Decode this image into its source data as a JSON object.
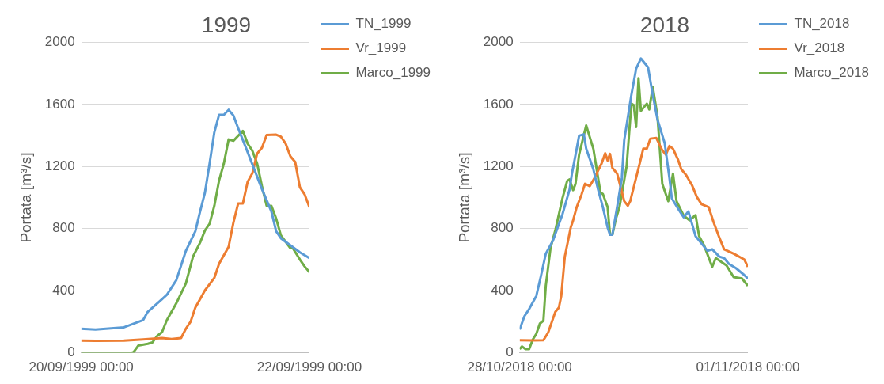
{
  "chart_data": [
    {
      "type": "line",
      "title": "1999",
      "ylabel": "Portata [m³/s]",
      "xlim": [
        "1999-09-20T00:00",
        "1999-09-22T00:00"
      ],
      "xticks": [
        {
          "value": "1999-09-20T00:00",
          "label": "20/09/1999 00:00"
        },
        {
          "value": "1999-09-22T00:00",
          "label": "22/09/1999 00:00"
        }
      ],
      "ylim": [
        0,
        2000
      ],
      "yticks": [
        0,
        400,
        800,
        1200,
        1600,
        2000
      ],
      "grid": "y",
      "legend": "top right",
      "marker": "none",
      "line_style": "solid",
      "series": [
        {
          "name": "TN_1999",
          "color": "#5b9bd5",
          "x": [
            "1999-09-20T00:00",
            "1999-09-20T03:00",
            "1999-09-20T09:00",
            "1999-09-20T13:00",
            "1999-09-20T14:00",
            "1999-09-20T17:00",
            "1999-09-20T18:00",
            "1999-09-20T20:00",
            "1999-09-20T22:00",
            "1999-09-21T00:00",
            "1999-09-21T01:00",
            "1999-09-21T02:00",
            "1999-09-21T03:00",
            "1999-09-21T04:00",
            "1999-09-21T05:00",
            "1999-09-21T06:00",
            "1999-09-21T07:00",
            "1999-09-21T08:00",
            "1999-09-21T09:00",
            "1999-09-21T11:00",
            "1999-09-21T14:00",
            "1999-09-21T16:00",
            "1999-09-21T17:00",
            "1999-09-21T18:00",
            "1999-09-21T22:00",
            "1999-09-22T00:00"
          ],
          "values": [
            155,
            150,
            164,
            210,
            264,
            346,
            373,
            468,
            656,
            783,
            911,
            1029,
            1220,
            1421,
            1534,
            1534,
            1566,
            1530,
            1448,
            1293,
            1056,
            911,
            783,
            738,
            647,
            610
          ]
        },
        {
          "name": "Vr_1999",
          "color": "#ed7d31",
          "x": [
            "1999-09-20T00:00",
            "1999-09-20T03:00",
            "1999-09-20T09:00",
            "1999-09-20T13:00",
            "1999-09-20T17:00",
            "1999-09-20T19:00",
            "1999-09-20T21:00",
            "1999-09-20T22:00",
            "1999-09-20T23:00",
            "1999-09-21T00:00",
            "1999-09-21T02:00",
            "1999-09-21T04:00",
            "1999-09-21T05:00",
            "1999-09-21T07:00",
            "1999-09-21T08:00",
            "1999-09-21T09:00",
            "1999-09-21T10:00",
            "1999-09-21T11:00",
            "1999-09-21T12:00",
            "1999-09-21T13:00",
            "1999-09-21T14:00",
            "1999-09-21T15:00",
            "1999-09-21T17:00",
            "1999-09-21T18:00",
            "1999-09-21T19:00",
            "1999-09-21T20:00",
            "1999-09-21T21:00",
            "1999-09-21T22:00",
            "1999-09-21T23:00",
            "1999-09-22T00:00"
          ],
          "values": [
            78,
            77,
            78,
            86,
            95,
            89,
            95,
            155,
            200,
            291,
            401,
            483,
            574,
            683,
            838,
            962,
            962,
            1102,
            1157,
            1284,
            1321,
            1403,
            1406,
            1393,
            1348,
            1266,
            1230,
            1066,
            1020,
            938
          ]
        },
        {
          "name": "Marco_1999",
          "color": "#70ad47",
          "x": [
            "1999-09-20T00:00",
            "1999-09-20T10:30",
            "1999-09-20T11:00",
            "1999-09-20T12:00",
            "1999-09-20T14:00",
            "1999-09-20T15:00",
            "1999-09-20T16:00",
            "1999-09-20T17:00",
            "1999-09-20T18:00",
            "1999-09-20T20:00",
            "1999-09-20T21:00",
            "1999-09-20T22:00",
            "1999-09-20T23:30",
            "1999-09-21T01:00",
            "1999-09-21T02:00",
            "1999-09-21T03:00",
            "1999-09-21T04:00",
            "1999-09-21T05:00",
            "1999-09-21T06:00",
            "1999-09-21T07:00",
            "1999-09-21T08:00",
            "1999-09-21T10:00",
            "1999-09-21T11:00",
            "1999-09-21T12:00",
            "1999-09-21T13:00",
            "1999-09-21T14:00",
            "1999-09-21T15:00",
            "1999-09-21T16:00",
            "1999-09-21T17:00",
            "1999-09-21T18:00",
            "1999-09-21T20:00",
            "1999-09-21T20:30",
            "1999-09-21T22:00",
            "1999-09-21T23:00",
            "1999-09-22T00:00"
          ],
          "values": [
            0,
            0,
            4,
            46,
            58,
            67,
            109,
            133,
            210,
            319,
            383,
            446,
            619,
            710,
            787,
            832,
            947,
            1111,
            1220,
            1375,
            1366,
            1430,
            1348,
            1302,
            1220,
            1075,
            947,
            947,
            865,
            756,
            674,
            674,
            601,
            556,
            519
          ]
        }
      ]
    },
    {
      "type": "line",
      "title": "2018",
      "ylabel": "Portata [m³/s]",
      "xlim": [
        "2018-10-28T00:00",
        "2018-11-01T00:00"
      ],
      "xticks": [
        {
          "value": "2018-10-28T00:00",
          "label": "28/10/2018 00:00"
        },
        {
          "value": "2018-11-01T00:00",
          "label": "01/11/2018 00:00"
        }
      ],
      "ylim": [
        0,
        2000
      ],
      "yticks": [
        0,
        400,
        800,
        1200,
        1600,
        2000
      ],
      "grid": "y",
      "legend": "top right",
      "marker": "none",
      "line_style": "solid",
      "series": [
        {
          "name": "TN_2018",
          "color": "#5b9bd5",
          "x": [
            "2018-10-28T00:00",
            "2018-10-28T02:00",
            "2018-10-28T04:00",
            "2018-10-28T07:00",
            "2018-10-28T09:00",
            "2018-10-28T11:00",
            "2018-10-28T14:00",
            "2018-10-28T16:00",
            "2018-10-28T18:00",
            "2018-10-28T21:00",
            "2018-10-28T22:00",
            "2018-10-29T00:00",
            "2018-10-29T01:00",
            "2018-10-29T03:00",
            "2018-10-29T04:00",
            "2018-10-29T07:00",
            "2018-10-29T09:00",
            "2018-10-29T11:00",
            "2018-10-29T13:00",
            "2018-10-29T14:00",
            "2018-10-29T15:00",
            "2018-10-29T17:00",
            "2018-10-29T19:00",
            "2018-10-29T20:00",
            "2018-10-29T23:00",
            "2018-10-30T01:00",
            "2018-10-30T03:00",
            "2018-10-30T04:00",
            "2018-10-30T06:00",
            "2018-10-30T08:00",
            "2018-10-30T10:00",
            "2018-10-30T13:00",
            "2018-10-30T15:00",
            "2018-10-30T16:00",
            "2018-10-30T19:00",
            "2018-10-30T21:00",
            "2018-10-30T23:00",
            "2018-10-31T02:00",
            "2018-10-31T05:00",
            "2018-10-31T07:00",
            "2018-10-31T09:00",
            "2018-10-31T12:00",
            "2018-10-31T14:00",
            "2018-10-31T16:00",
            "2018-10-31T19:00",
            "2018-10-31T22:00",
            "2018-11-01T00:00"
          ],
          "values": [
            150,
            235,
            282,
            366,
            498,
            638,
            723,
            808,
            892,
            1052,
            1155,
            1315,
            1399,
            1408,
            1315,
            1183,
            1052,
            939,
            808,
            761,
            761,
            939,
            1127,
            1371,
            1662,
            1831,
            1897,
            1878,
            1840,
            1662,
            1502,
            1352,
            1127,
            995,
            920,
            873,
            911,
            751,
            695,
            657,
            667,
            620,
            610,
            573,
            545,
            507,
            479
          ]
        },
        {
          "name": "Vr_2018",
          "color": "#ed7d31",
          "x": [
            "2018-10-28T00:00",
            "2018-10-28T05:30",
            "2018-10-28T10:00",
            "2018-10-28T12:00",
            "2018-10-28T15:00",
            "2018-10-28T16:30",
            "2018-10-28T17:30",
            "2018-10-28T19:00",
            "2018-10-28T21:30",
            "2018-10-28T22:30",
            "2018-10-29T00:00",
            "2018-10-29T02:00",
            "2018-10-29T03:30",
            "2018-10-29T05:30",
            "2018-10-29T07:30",
            "2018-10-29T10:30",
            "2018-10-29T12:00",
            "2018-10-29T13:00",
            "2018-10-29T14:00",
            "2018-10-29T15:00",
            "2018-10-29T17:00",
            "2018-10-29T20:00",
            "2018-10-29T21:30",
            "2018-10-29T22:30",
            "2018-10-30T02:30",
            "2018-10-30T04:00",
            "2018-10-30T05:30",
            "2018-10-30T07:00",
            "2018-10-30T09:30",
            "2018-10-30T12:00",
            "2018-10-30T13:30",
            "2018-10-30T15:00",
            "2018-10-30T16:30",
            "2018-10-30T18:30",
            "2018-10-30T20:00",
            "2018-10-30T22:00",
            "2018-10-31T00:30",
            "2018-10-31T02:30",
            "2018-10-31T04:30",
            "2018-10-31T07:30",
            "2018-10-31T09:30",
            "2018-10-31T12:00",
            "2018-10-31T14:00",
            "2018-10-31T18:00",
            "2018-10-31T22:30",
            "2018-11-01T00:00"
          ],
          "values": [
            81,
            79,
            81,
            131,
            263,
            291,
            366,
            620,
            808,
            854,
            939,
            1018,
            1089,
            1074,
            1127,
            1221,
            1286,
            1239,
            1282,
            1192,
            1155,
            977,
            948,
            977,
            1221,
            1315,
            1315,
            1380,
            1384,
            1305,
            1277,
            1333,
            1315,
            1249,
            1183,
            1146,
            1080,
            1005,
            958,
            939,
            845,
            742,
            667,
            639,
            601,
            554
          ]
        },
        {
          "name": "Marco_2018",
          "color": "#70ad47",
          "x": [
            "2018-10-28T00:00",
            "2018-10-28T01:00",
            "2018-10-28T02:30",
            "2018-10-28T04:00",
            "2018-10-28T05:30",
            "2018-10-28T07:00",
            "2018-10-28T08:30",
            "2018-10-28T10:00",
            "2018-10-28T11:00",
            "2018-10-28T13:00",
            "2018-10-28T15:00",
            "2018-10-28T18:00",
            "2018-10-28T20:00",
            "2018-10-28T21:00",
            "2018-10-28T22:30",
            "2018-10-28T23:30",
            "2018-10-29T01:00",
            "2018-10-29T04:00",
            "2018-10-29T07:00",
            "2018-10-29T10:00",
            "2018-10-29T11:00",
            "2018-10-29T13:00",
            "2018-10-29T14:00",
            "2018-10-29T15:00",
            "2018-10-29T16:30",
            "2018-10-29T18:00",
            "2018-10-29T21:00",
            "2018-10-29T23:00",
            "2018-10-30T00:00",
            "2018-10-30T01:00",
            "2018-10-30T02:00",
            "2018-10-30T03:00",
            "2018-10-30T05:30",
            "2018-10-30T06:30",
            "2018-10-30T08:00",
            "2018-10-30T10:00",
            "2018-10-30T12:00",
            "2018-10-30T14:30",
            "2018-10-30T16:30",
            "2018-10-30T18:00",
            "2018-10-30T21:00",
            "2018-10-30T23:30",
            "2018-10-31T02:00",
            "2018-10-31T03:30",
            "2018-10-31T05:30",
            "2018-10-31T09:00",
            "2018-10-31T10:30",
            "2018-10-31T15:00",
            "2018-10-31T18:00",
            "2018-10-31T21:30",
            "2018-11-01T00:00"
          ],
          "values": [
            24,
            41,
            23,
            23,
            85,
            122,
            188,
            207,
            432,
            676,
            789,
            995,
            1108,
            1117,
            1048,
            1089,
            1277,
            1465,
            1315,
            1033,
            1023,
            939,
            761,
            761,
            864,
            939,
            1202,
            1606,
            1596,
            1455,
            1769,
            1559,
            1606,
            1568,
            1713,
            1521,
            1089,
            977,
            1155,
            977,
            883,
            854,
            887,
            751,
            695,
            554,
            610,
            563,
            488,
            479,
            432
          ]
        }
      ]
    }
  ]
}
